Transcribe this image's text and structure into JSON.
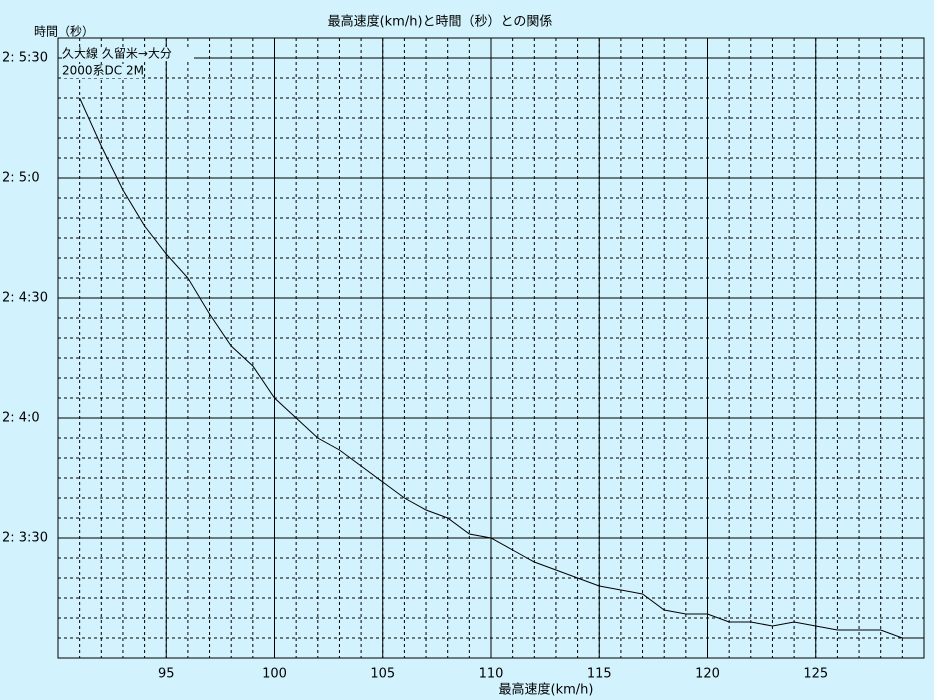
{
  "chart_data": {
    "type": "line",
    "title": "最高速度(km/h)と時間（秒）との関係",
    "y_label": "時間（秒）",
    "x_label": "最高速度(km/h)",
    "annotations": [
      "久大線 久留米→大分",
      "2000系DC 2M"
    ],
    "x": [
      91,
      92,
      93,
      94,
      95,
      96,
      97,
      98,
      99,
      100,
      101,
      102,
      103,
      104,
      105,
      106,
      107,
      108,
      109,
      110,
      111,
      112,
      113,
      114,
      115,
      116,
      117,
      118,
      119,
      120,
      121,
      122,
      123,
      124,
      125,
      126,
      127,
      128,
      129,
      130
    ],
    "series": [
      {
        "color": "#000000",
        "values": [
          7520,
          7508,
          7497,
          7488,
          7481,
          7475,
          7466,
          7458,
          7453,
          7445,
          7440,
          7435,
          7432,
          7428,
          7424,
          7420,
          7417,
          7415,
          7411,
          7410,
          7407,
          7404,
          7402,
          7400,
          7398,
          7397,
          7396,
          7392,
          7391,
          7391,
          7389,
          7389,
          7388,
          7389,
          7388,
          7387,
          7387,
          7387,
          7385,
          7385
        ]
      }
    ],
    "xlim": [
      90,
      130
    ],
    "ylim": [
      7380,
      7535
    ],
    "xticks": [
      95,
      100,
      105,
      110,
      115,
      120,
      125
    ],
    "yticks": [
      {
        "value": 7410,
        "label": "2: 3:30"
      },
      {
        "value": 7440,
        "label": "2: 4:0"
      },
      {
        "value": 7470,
        "label": "2: 4:30"
      },
      {
        "value": 7500,
        "label": "2: 5:0"
      },
      {
        "value": 7530,
        "label": "2: 5:30"
      }
    ],
    "x_minor_step": 1,
    "y_minor_step": 5,
    "grid": true
  }
}
